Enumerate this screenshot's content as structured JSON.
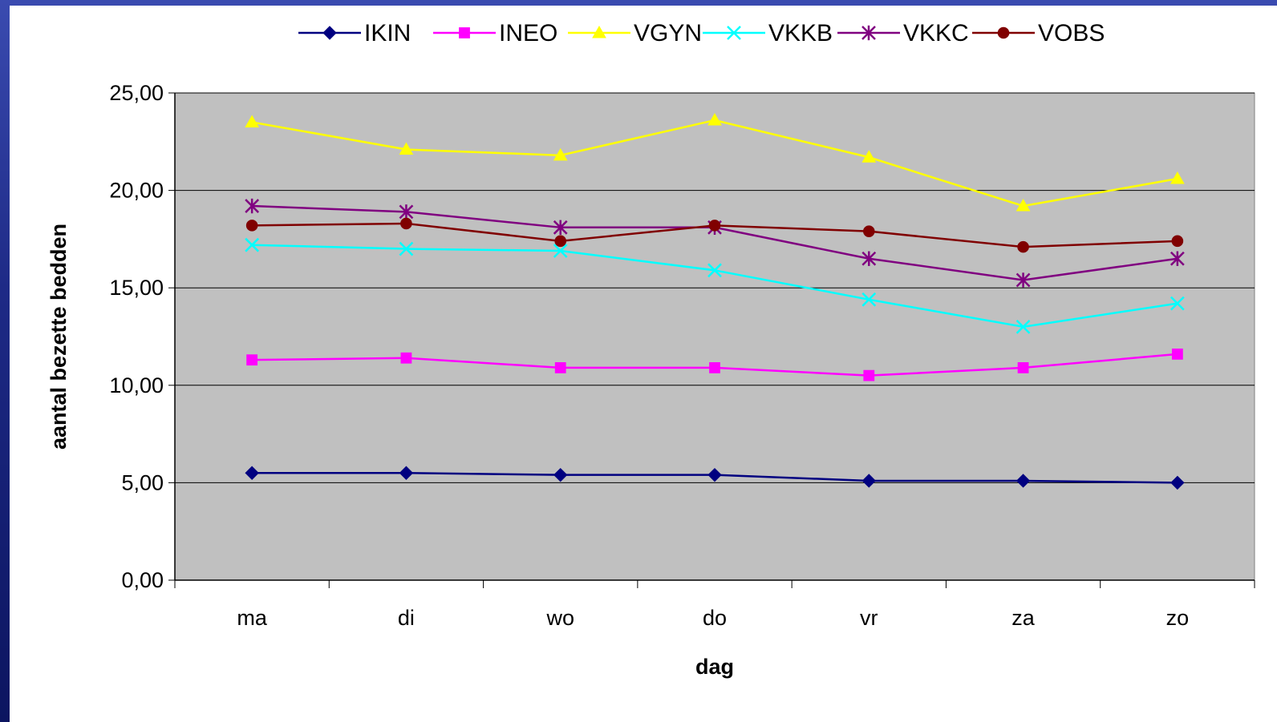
{
  "chart_data": {
    "type": "line",
    "title": "",
    "xlabel": "dag",
    "ylabel": "aantal bezette bedden",
    "categories": [
      "ma",
      "di",
      "wo",
      "do",
      "vr",
      "za",
      "zo"
    ],
    "ylim": [
      0,
      25
    ],
    "yticks": [
      "0,00",
      "5,00",
      "10,00",
      "15,00",
      "20,00",
      "25,00"
    ],
    "grid": true,
    "legend_position": "top",
    "plot_background": "#c0c0c0",
    "series": [
      {
        "name": "IKIN",
        "color": "#000080",
        "marker": "diamond",
        "values": [
          5.5,
          5.5,
          5.4,
          5.4,
          5.1,
          5.1,
          5.0
        ]
      },
      {
        "name": "INEO",
        "color": "#ff00ff",
        "marker": "square",
        "values": [
          11.3,
          11.4,
          10.9,
          10.9,
          10.5,
          10.9,
          11.6
        ]
      },
      {
        "name": "VGYN",
        "color": "#ffff00",
        "marker": "triangle",
        "values": [
          23.5,
          22.1,
          21.8,
          23.6,
          21.7,
          19.2,
          20.6
        ]
      },
      {
        "name": "VKKB",
        "color": "#00ffff",
        "marker": "x",
        "values": [
          17.2,
          17.0,
          16.9,
          15.9,
          14.4,
          13.0,
          14.2
        ]
      },
      {
        "name": "VKKC",
        "color": "#800080",
        "marker": "star",
        "values": [
          19.2,
          18.9,
          18.1,
          18.1,
          16.5,
          15.4,
          16.5
        ]
      },
      {
        "name": "VOBS",
        "color": "#800000",
        "marker": "circle",
        "values": [
          18.2,
          18.3,
          17.4,
          18.2,
          17.9,
          17.1,
          17.4
        ]
      }
    ]
  }
}
